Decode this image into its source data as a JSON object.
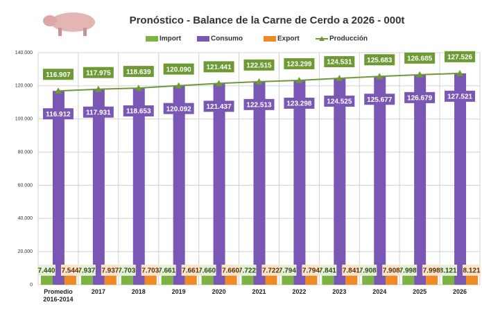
{
  "chart_data": {
    "type": "bar",
    "title": "Pronóstico - Balance de la Carne de Cerdo a 2026 - 000t",
    "categories": [
      "Promedio 2016-2014",
      "2017",
      "2018",
      "2019",
      "2020",
      "2021",
      "2022",
      "2023",
      "2024",
      "2025",
      "2026"
    ],
    "series": [
      {
        "name": "Import",
        "color": "#7cb342",
        "values": [
          7440,
          7937,
          7703,
          7661,
          7660,
          7722,
          7794,
          7841,
          7908,
          7998,
          8121
        ],
        "value_labels": [
          "7.440",
          "7.937",
          "7.703",
          "7.661",
          "7.660",
          "7.722",
          "7.794",
          "7.841",
          "7.908",
          "7.998",
          "8.121"
        ]
      },
      {
        "name": "Consumo",
        "color": "#7b57b5",
        "values": [
          116912,
          117931,
          118653,
          120092,
          121437,
          122513,
          123298,
          124525,
          125677,
          126679,
          127521
        ],
        "value_labels": [
          "116.912",
          "117.931",
          "118.653",
          "120.092",
          "121.437",
          "122.513",
          "123.298",
          "124.525",
          "125.677",
          "126.679",
          "127.521"
        ]
      },
      {
        "name": "Export",
        "color": "#f08a24",
        "values": [
          7544,
          7937,
          7703,
          7661,
          7660,
          7722,
          7794,
          7841,
          7908,
          7998,
          8121
        ],
        "value_labels": [
          "7.544",
          "7.937",
          "7.703",
          "7.661",
          "7.660",
          "7.722",
          "7.794",
          "7.841",
          "7.908",
          "7.998",
          "8.121"
        ]
      },
      {
        "name": "Producción",
        "color": "#6e9a35",
        "type": "line",
        "values": [
          116907,
          117975,
          118639,
          120090,
          121441,
          122515,
          123299,
          124531,
          125683,
          126685,
          127526
        ],
        "value_labels": [
          "116.907",
          "117.975",
          "118.639",
          "120.090",
          "121.441",
          "122.515",
          "123.299",
          "124.531",
          "125.683",
          "126.685",
          "127.526"
        ]
      }
    ],
    "ylim": [
      0,
      140000
    ],
    "yticks": [
      0,
      {
        "value": 20000,
        "label": "20.000"
      },
      {
        "value": 40000,
        "label": "40.000"
      },
      {
        "value": 60000,
        "label": "60.000"
      },
      {
        "value": 80000,
        "label": "80.000"
      },
      {
        "value": 100000,
        "label": "100.000"
      },
      {
        "value": 120000,
        "label": "120.000"
      },
      {
        "value": 140000,
        "label": "140.000"
      }
    ],
    "grid": true
  }
}
